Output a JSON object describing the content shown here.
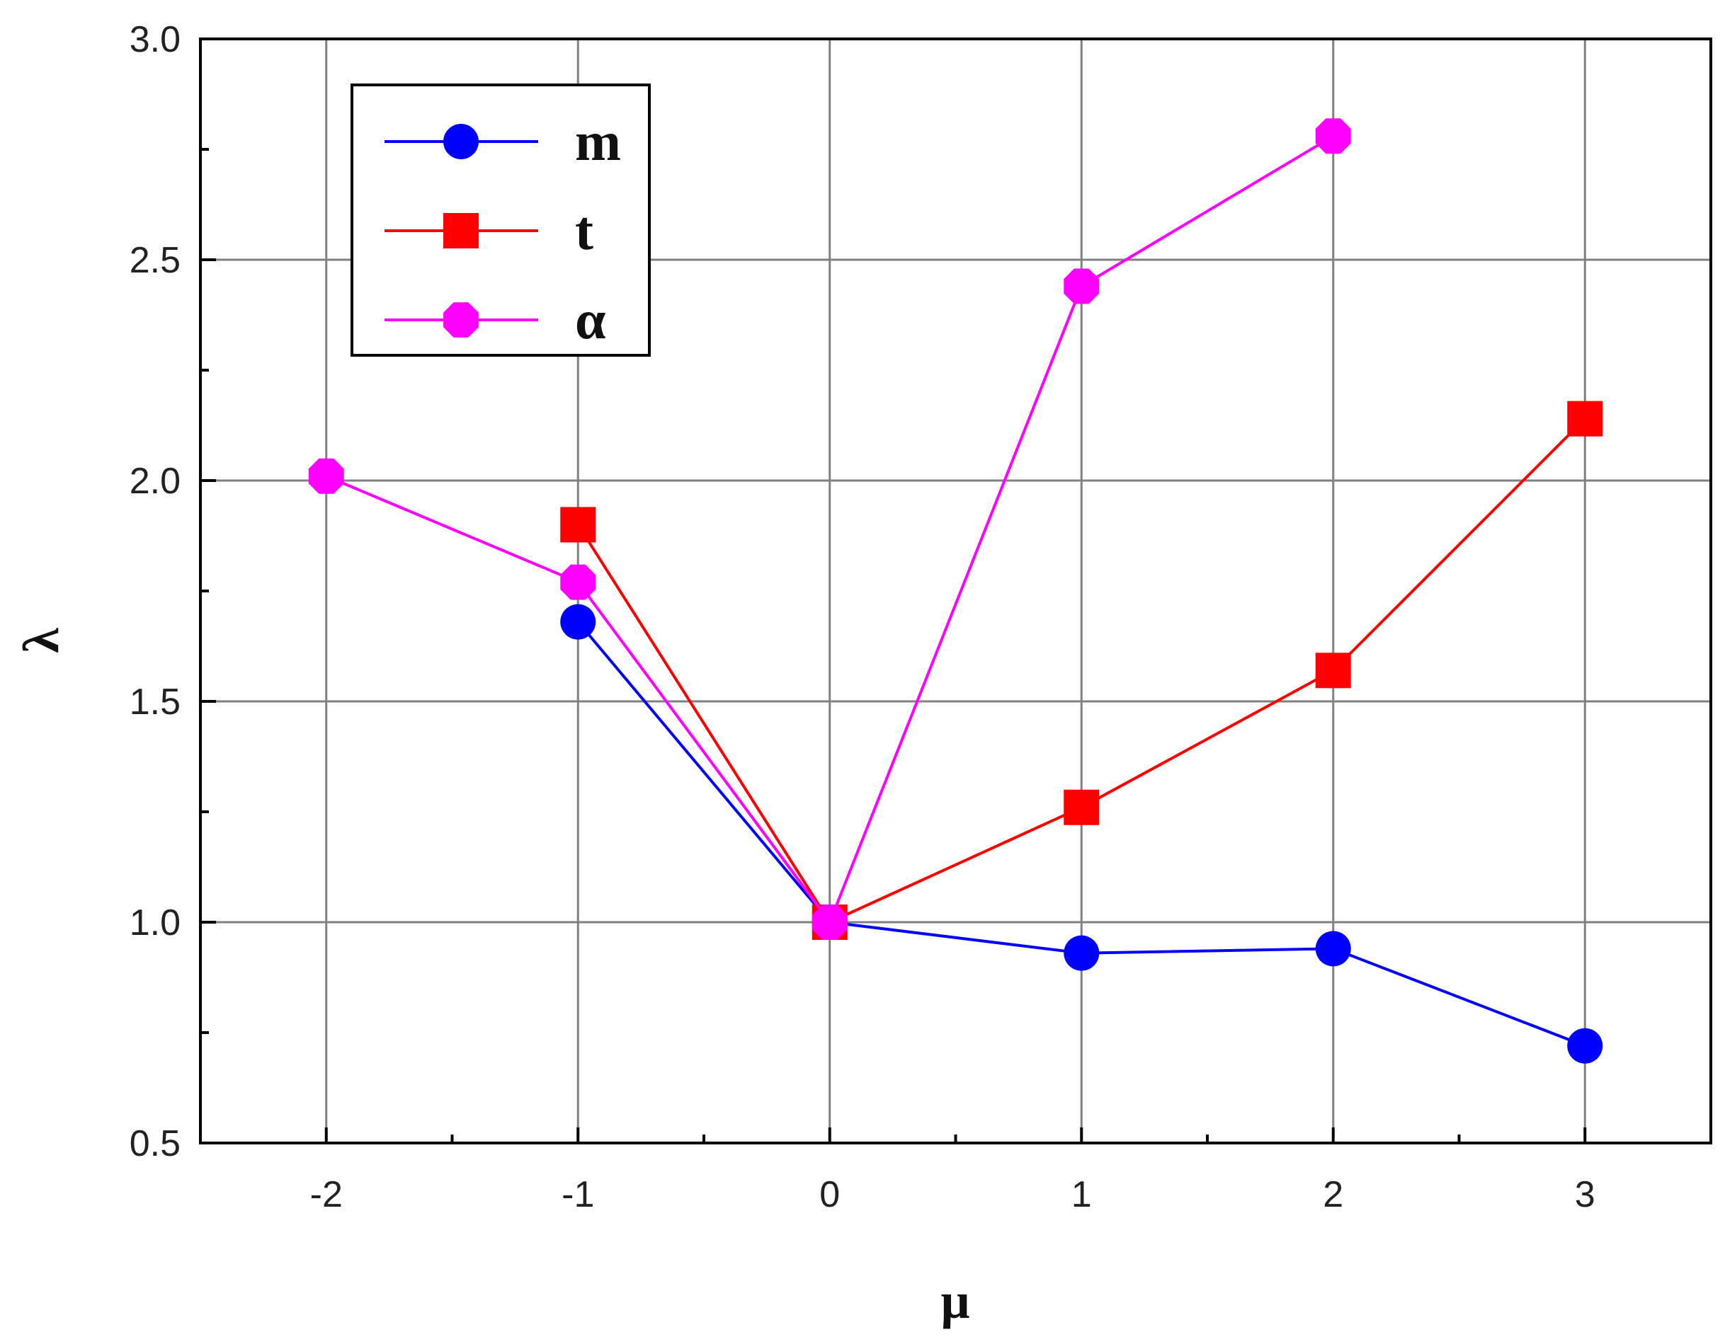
{
  "chart_data": {
    "type": "line",
    "title": "",
    "xlabel": "μ",
    "ylabel": "λ",
    "xlim": [
      -2.5,
      3.5
    ],
    "ylim": [
      0.5,
      3.0
    ],
    "xticks": [
      -2,
      -1,
      0,
      1,
      2,
      3
    ],
    "xtick_labels": [
      "-2",
      "-1",
      "0",
      "1",
      "2",
      "3"
    ],
    "yticks": [
      0.5,
      1.0,
      1.5,
      2.0,
      2.5,
      3.0
    ],
    "ytick_labels": [
      "0.5",
      "1.0",
      "1.5",
      "2.0",
      "2.5",
      "3.0"
    ],
    "grid": true,
    "legend_position": "top-left",
    "series": [
      {
        "name": "m",
        "color": "#0000ff",
        "marker": "circle",
        "points": [
          [
            -1,
            1.68
          ],
          [
            0,
            1.0
          ],
          [
            1,
            0.93
          ],
          [
            2,
            0.94
          ],
          [
            3,
            0.72
          ]
        ]
      },
      {
        "name": "t",
        "color": "#ff0000",
        "marker": "square",
        "points": [
          [
            -1,
            1.9
          ],
          [
            0,
            1.0
          ],
          [
            1,
            1.26
          ],
          [
            2,
            1.57
          ],
          [
            3,
            2.14
          ]
        ]
      },
      {
        "name": "α",
        "color": "#ff00ff",
        "marker": "octagon",
        "points": [
          [
            -2,
            2.01
          ],
          [
            -1,
            1.77
          ],
          [
            0,
            1.0
          ],
          [
            1,
            2.44
          ],
          [
            2,
            2.78
          ]
        ]
      }
    ]
  }
}
